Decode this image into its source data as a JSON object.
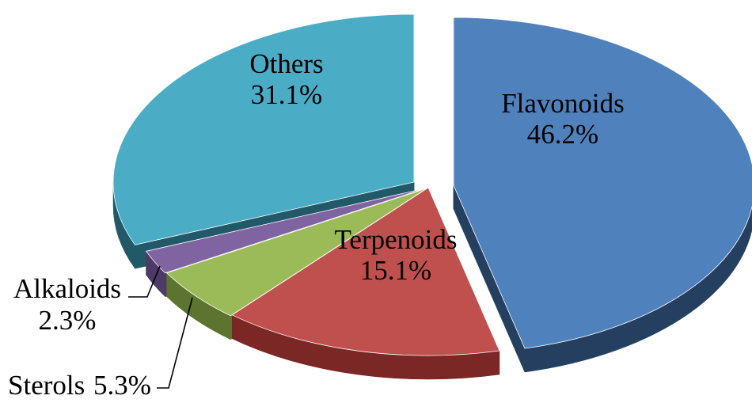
{
  "chart_data": {
    "type": "pie",
    "style": "3d-exploded",
    "slices": [
      {
        "label": "Flavonoids",
        "value": 46.2,
        "value_label": "46.2%",
        "color": "#4f81bd",
        "side_color": "#243f60"
      },
      {
        "label": "Terpenoids",
        "value": 15.1,
        "value_label": "15.1%",
        "color": "#c0504d",
        "side_color": "#7a2725"
      },
      {
        "label": "Sterols",
        "value": 5.3,
        "value_label": "5.3%",
        "color": "#9bbb59",
        "side_color": "#5d7330"
      },
      {
        "label": "Alkaloids",
        "value": 2.3,
        "value_label": "2.3%",
        "color": "#8064a2",
        "side_color": "#4d3a66"
      },
      {
        "label": "Others",
        "value": 31.1,
        "value_label": "31.1%",
        "color": "#4bacc6",
        "side_color": "#215968"
      }
    ]
  }
}
